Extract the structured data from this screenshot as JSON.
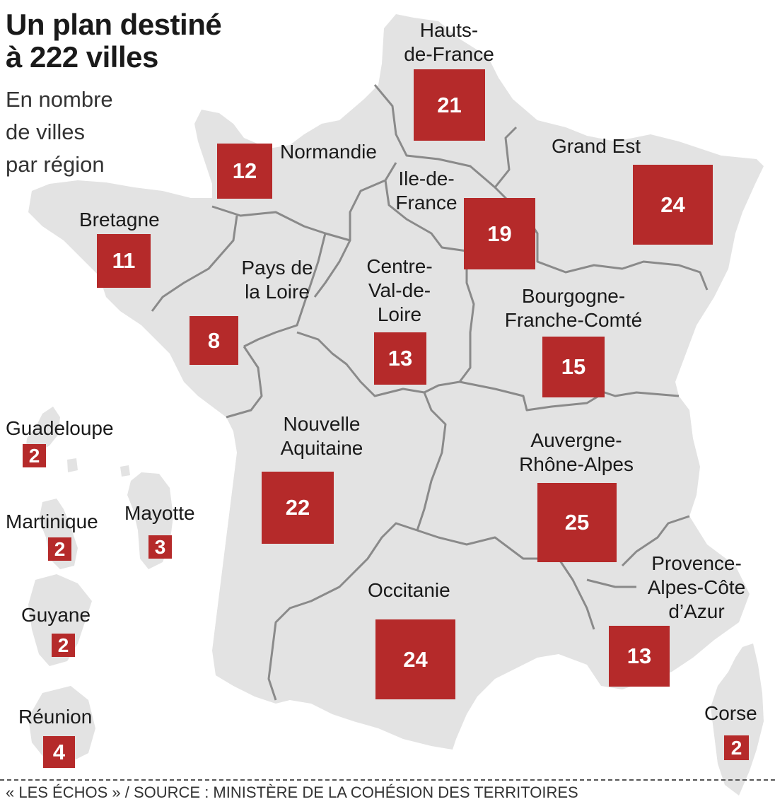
{
  "title_line1": "Un plan destiné",
  "title_line2": "à 222 villes",
  "subtitle": [
    "En nombre",
    "de villes",
    "par région"
  ],
  "colors": {
    "land": "#e3e3e3",
    "border": "#8a8a8a",
    "box": "#b52a2a",
    "box_text": "#ffffff"
  },
  "regions": [
    {
      "id": "hauts-de-france",
      "name_lines": [
        "Hauts-",
        "de-France"
      ],
      "count": "21"
    },
    {
      "id": "normandie",
      "name_lines": [
        "Normandie"
      ],
      "count": "12"
    },
    {
      "id": "grand-est",
      "name_lines": [
        "Grand Est"
      ],
      "count": "24"
    },
    {
      "id": "ile-de-france",
      "name_lines": [
        "Ile-de-",
        "France"
      ],
      "count": "19"
    },
    {
      "id": "bretagne",
      "name_lines": [
        "Bretagne"
      ],
      "count": "11"
    },
    {
      "id": "pays-de-la-loire",
      "name_lines": [
        "Pays de",
        "la Loire"
      ],
      "count": "8"
    },
    {
      "id": "centre-val-de-loire",
      "name_lines": [
        "Centre-",
        "Val-de-",
        "Loire"
      ],
      "count": "13"
    },
    {
      "id": "bourgogne-franche-comte",
      "name_lines": [
        "Bourgogne-",
        "Franche-Comté"
      ],
      "count": "15"
    },
    {
      "id": "nouvelle-aquitaine",
      "name_lines": [
        "Nouvelle",
        "Aquitaine"
      ],
      "count": "22"
    },
    {
      "id": "auvergne-rhone-alpes",
      "name_lines": [
        "Auvergne-",
        "Rhône-Alpes"
      ],
      "count": "25"
    },
    {
      "id": "occitanie",
      "name_lines": [
        "Occitanie"
      ],
      "count": "24"
    },
    {
      "id": "paca",
      "name_lines": [
        "Provence-",
        "Alpes-Côte",
        "d’Azur"
      ],
      "count": "13"
    },
    {
      "id": "corse",
      "name_lines": [
        "Corse"
      ],
      "count": "2"
    },
    {
      "id": "guadeloupe",
      "name_lines": [
        "Guadeloupe"
      ],
      "count": "2"
    },
    {
      "id": "martinique",
      "name_lines": [
        "Martinique"
      ],
      "count": "2"
    },
    {
      "id": "mayotte",
      "name_lines": [
        "Mayotte"
      ],
      "count": "3"
    },
    {
      "id": "guyane",
      "name_lines": [
        "Guyane"
      ],
      "count": "2"
    },
    {
      "id": "reunion",
      "name_lines": [
        "Réunion"
      ],
      "count": "4"
    }
  ],
  "source": "« LES ÉCHOS » / SOURCE : MINISTÈRE DE LA COHÉSION DES TERRITOIRES"
}
